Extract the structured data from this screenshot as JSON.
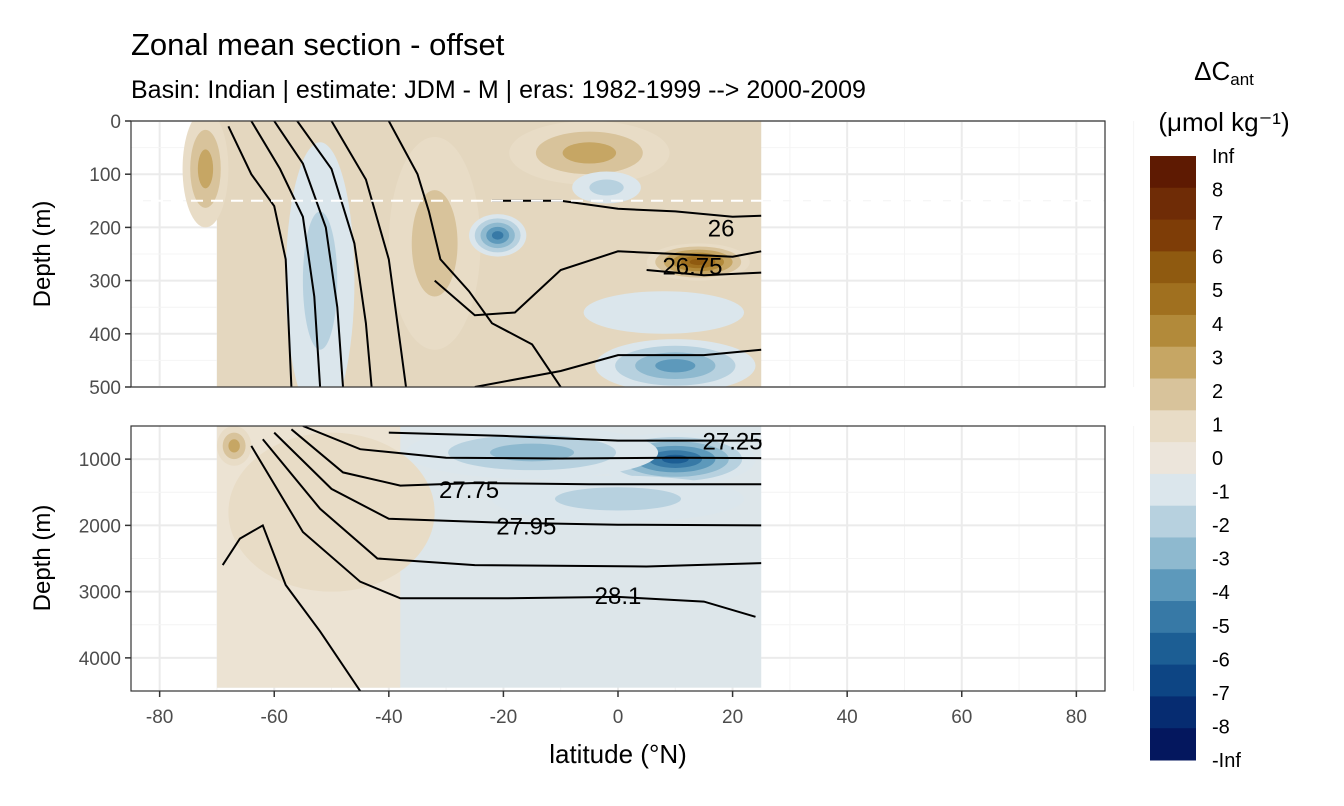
{
  "chart_data": {
    "type": "heatmap",
    "title": "Zonal mean section - offset",
    "subtitle": "Basin: Indian | estimate: JDM - M | eras: 1982-1999 --> 2000-2009",
    "xlabel": "latitude (°N)",
    "ylabel": "Depth (m)",
    "xlim": [
      -85,
      85
    ],
    "x_ticks": [
      "-80",
      "-60",
      "-40",
      "-20",
      "0",
      "20",
      "40",
      "60",
      "80"
    ],
    "data_lat_range": [
      -70,
      25
    ],
    "panels": [
      {
        "name": "upper",
        "ylim": [
          0,
          500
        ],
        "y_ticks": [
          "0",
          "100",
          "200",
          "300",
          "400",
          "500"
        ],
        "reference_depth_dashed": 150,
        "blobs": [
          {
            "lat": -72,
            "depth": 90,
            "lat_hw": 4,
            "depth_hw": 110,
            "value": 3
          },
          {
            "lat": -52,
            "depth": 300,
            "lat_hw": 6,
            "depth_hw": 260,
            "value": -2
          },
          {
            "lat": -32,
            "depth": 230,
            "lat_hw": 8,
            "depth_hw": 200,
            "value": 2
          },
          {
            "lat": -21,
            "depth": 215,
            "lat_hw": 5,
            "depth_hw": 40,
            "value": -5
          },
          {
            "lat": -5,
            "depth": 60,
            "lat_hw": 14,
            "depth_hw": 60,
            "value": 3
          },
          {
            "lat": -2,
            "depth": 125,
            "lat_hw": 6,
            "depth_hw": 30,
            "value": -2
          },
          {
            "lat": 14,
            "depth": 265,
            "lat_hw": 9,
            "depth_hw": 35,
            "value": 6
          },
          {
            "lat": 8,
            "depth": 360,
            "lat_hw": 14,
            "depth_hw": 40,
            "value": -1
          },
          {
            "lat": 10,
            "depth": 460,
            "lat_hw": 14,
            "depth_hw": 50,
            "value": -4
          }
        ],
        "contours": [
          {
            "label": "26",
            "label_lat": 18,
            "label_depth": 200,
            "points": [
              [
                -22,
                150
              ],
              [
                -10,
                150
              ],
              [
                0,
                165
              ],
              [
                10,
                170
              ],
              [
                20,
                180
              ],
              [
                25,
                178
              ]
            ]
          },
          {
            "label": "26.75",
            "label_lat": 13,
            "label_depth": 272,
            "points": [
              [
                -32,
                300
              ],
              [
                -25,
                365
              ],
              [
                -18,
                360
              ],
              [
                -10,
                280
              ],
              [
                0,
                245
              ],
              [
                10,
                250
              ],
              [
                20,
                255
              ],
              [
                25,
                245
              ]
            ]
          },
          {
            "label": "",
            "label_lat": 0,
            "label_depth": 0,
            "points": [
              [
                5,
                280
              ],
              [
                15,
                290
              ],
              [
                25,
                285
              ]
            ]
          },
          {
            "label": "",
            "label_lat": 0,
            "label_depth": 0,
            "points": [
              [
                -25,
                500
              ],
              [
                -10,
                470
              ],
              [
                0,
                440
              ],
              [
                15,
                440
              ],
              [
                25,
                430
              ]
            ]
          },
          {
            "label": "",
            "label_lat": 0,
            "label_depth": 0,
            "points": [
              [
                -68,
                10
              ],
              [
                -64,
                100
              ],
              [
                -60,
                160
              ],
              [
                -58,
                260
              ],
              [
                -57,
                500
              ]
            ]
          },
          {
            "label": "",
            "label_lat": 0,
            "label_depth": 0,
            "points": [
              [
                -64,
                0
              ],
              [
                -59,
                90
              ],
              [
                -55,
                180
              ],
              [
                -53,
                330
              ],
              [
                -52,
                500
              ]
            ]
          },
          {
            "label": "",
            "label_lat": 0,
            "label_depth": 0,
            "points": [
              [
                -60,
                0
              ],
              [
                -55,
                80
              ],
              [
                -51,
                200
              ],
              [
                -49,
                350
              ],
              [
                -48,
                500
              ]
            ]
          },
          {
            "label": "",
            "label_lat": 0,
            "label_depth": 0,
            "points": [
              [
                -56,
                0
              ],
              [
                -50,
                90
              ],
              [
                -46,
                230
              ],
              [
                -44,
                380
              ],
              [
                -43,
                500
              ]
            ]
          },
          {
            "label": "",
            "label_lat": 0,
            "label_depth": 0,
            "points": [
              [
                -50,
                0
              ],
              [
                -44,
                110
              ],
              [
                -40,
                260
              ],
              [
                -38,
                420
              ],
              [
                -37,
                500
              ]
            ]
          },
          {
            "label": "",
            "label_lat": 0,
            "label_depth": 0,
            "points": [
              [
                -40,
                0
              ],
              [
                -37,
                60
              ],
              [
                -35,
                100
              ],
              [
                -33,
                170
              ],
              [
                -31,
                260
              ],
              [
                -26,
                320
              ],
              [
                -22,
                380
              ],
              [
                -15,
                420
              ],
              [
                -10,
                500
              ]
            ]
          }
        ]
      },
      {
        "name": "lower",
        "ylim": [
          500,
          4500
        ],
        "y_ticks": [
          "1000",
          "2000",
          "3000",
          "4000"
        ],
        "blobs": [
          {
            "lat": 10,
            "depth": 1000,
            "lat_hw": 14,
            "depth_hw": 400,
            "value": -6
          },
          {
            "lat": -15,
            "depth": 900,
            "lat_hw": 22,
            "depth_hw": 400,
            "value": -3
          },
          {
            "lat": 0,
            "depth": 1600,
            "lat_hw": 22,
            "depth_hw": 350,
            "value": -2
          },
          {
            "lat": -50,
            "depth": 1800,
            "lat_hw": 18,
            "depth_hw": 1200,
            "value": 1
          },
          {
            "lat": -67,
            "depth": 800,
            "lat_hw": 3,
            "depth_hw": 300,
            "value": 3
          }
        ],
        "contours": [
          {
            "label": "27.25",
            "label_lat": 20,
            "label_depth": 720,
            "points": [
              [
                -40,
                600
              ],
              [
                -20,
                650
              ],
              [
                0,
                720
              ],
              [
                20,
                720
              ],
              [
                25,
                720
              ]
            ]
          },
          {
            "label": "",
            "label_lat": 0,
            "label_depth": 0,
            "points": [
              [
                -55,
                500
              ],
              [
                -45,
                850
              ],
              [
                -30,
                980
              ],
              [
                -10,
                990
              ],
              [
                10,
                980
              ],
              [
                25,
                985
              ]
            ]
          },
          {
            "label": "27.75",
            "label_lat": -26,
            "label_depth": 1450,
            "points": [
              [
                -57,
                550
              ],
              [
                -48,
                1200
              ],
              [
                -38,
                1400
              ],
              [
                -25,
                1360
              ],
              [
                -5,
                1380
              ],
              [
                25,
                1380
              ]
            ]
          },
          {
            "label": "27.95",
            "label_lat": -16,
            "label_depth": 2000,
            "points": [
              [
                -60,
                600
              ],
              [
                -50,
                1450
              ],
              [
                -40,
                1900
              ],
              [
                -20,
                1960
              ],
              [
                0,
                1990
              ],
              [
                25,
                2000
              ]
            ]
          },
          {
            "label": "",
            "label_lat": 0,
            "label_depth": 0,
            "points": [
              [
                -62,
                700
              ],
              [
                -52,
                1750
              ],
              [
                -42,
                2500
              ],
              [
                -25,
                2600
              ],
              [
                5,
                2620
              ],
              [
                25,
                2570
              ]
            ]
          },
          {
            "label": "28.1",
            "label_lat": 0,
            "label_depth": 3050,
            "points": [
              [
                -64,
                800
              ],
              [
                -55,
                2100
              ],
              [
                -45,
                2850
              ],
              [
                -38,
                3100
              ],
              [
                -20,
                3100
              ],
              [
                0,
                3080
              ],
              [
                15,
                3150
              ],
              [
                24,
                3380
              ]
            ]
          },
          {
            "label": "",
            "label_lat": 0,
            "label_depth": 0,
            "points": [
              [
                -69,
                2600
              ],
              [
                -66,
                2200
              ],
              [
                -62,
                2000
              ],
              [
                -58,
                2900
              ],
              [
                -52,
                3600
              ],
              [
                -45,
                4500
              ]
            ]
          }
        ]
      }
    ],
    "legend": {
      "title": "ΔCant",
      "units": "(μmol kg⁻¹)",
      "labels": [
        "Inf",
        "8",
        "7",
        "6",
        "5",
        "4",
        "3",
        "2",
        "1",
        "0",
        "-1",
        "-2",
        "-3",
        "-4",
        "-5",
        "-6",
        "-7",
        "-8",
        "-Inf"
      ],
      "colors": [
        "#5e1a02",
        "#6f2c06",
        "#7e3d07",
        "#8f5a10",
        "#a0701f",
        "#b28a3a",
        "#c6a664",
        "#d8c39b",
        "#e8dcc6",
        "#ece5db",
        "#dbe6ec",
        "#b7d1df",
        "#8eb9cf",
        "#5d99bb",
        "#3779a6",
        "#1c5e94",
        "#0d4584",
        "#062c71",
        "#04175e"
      ]
    },
    "grid": true,
    "legend_position": "right"
  }
}
